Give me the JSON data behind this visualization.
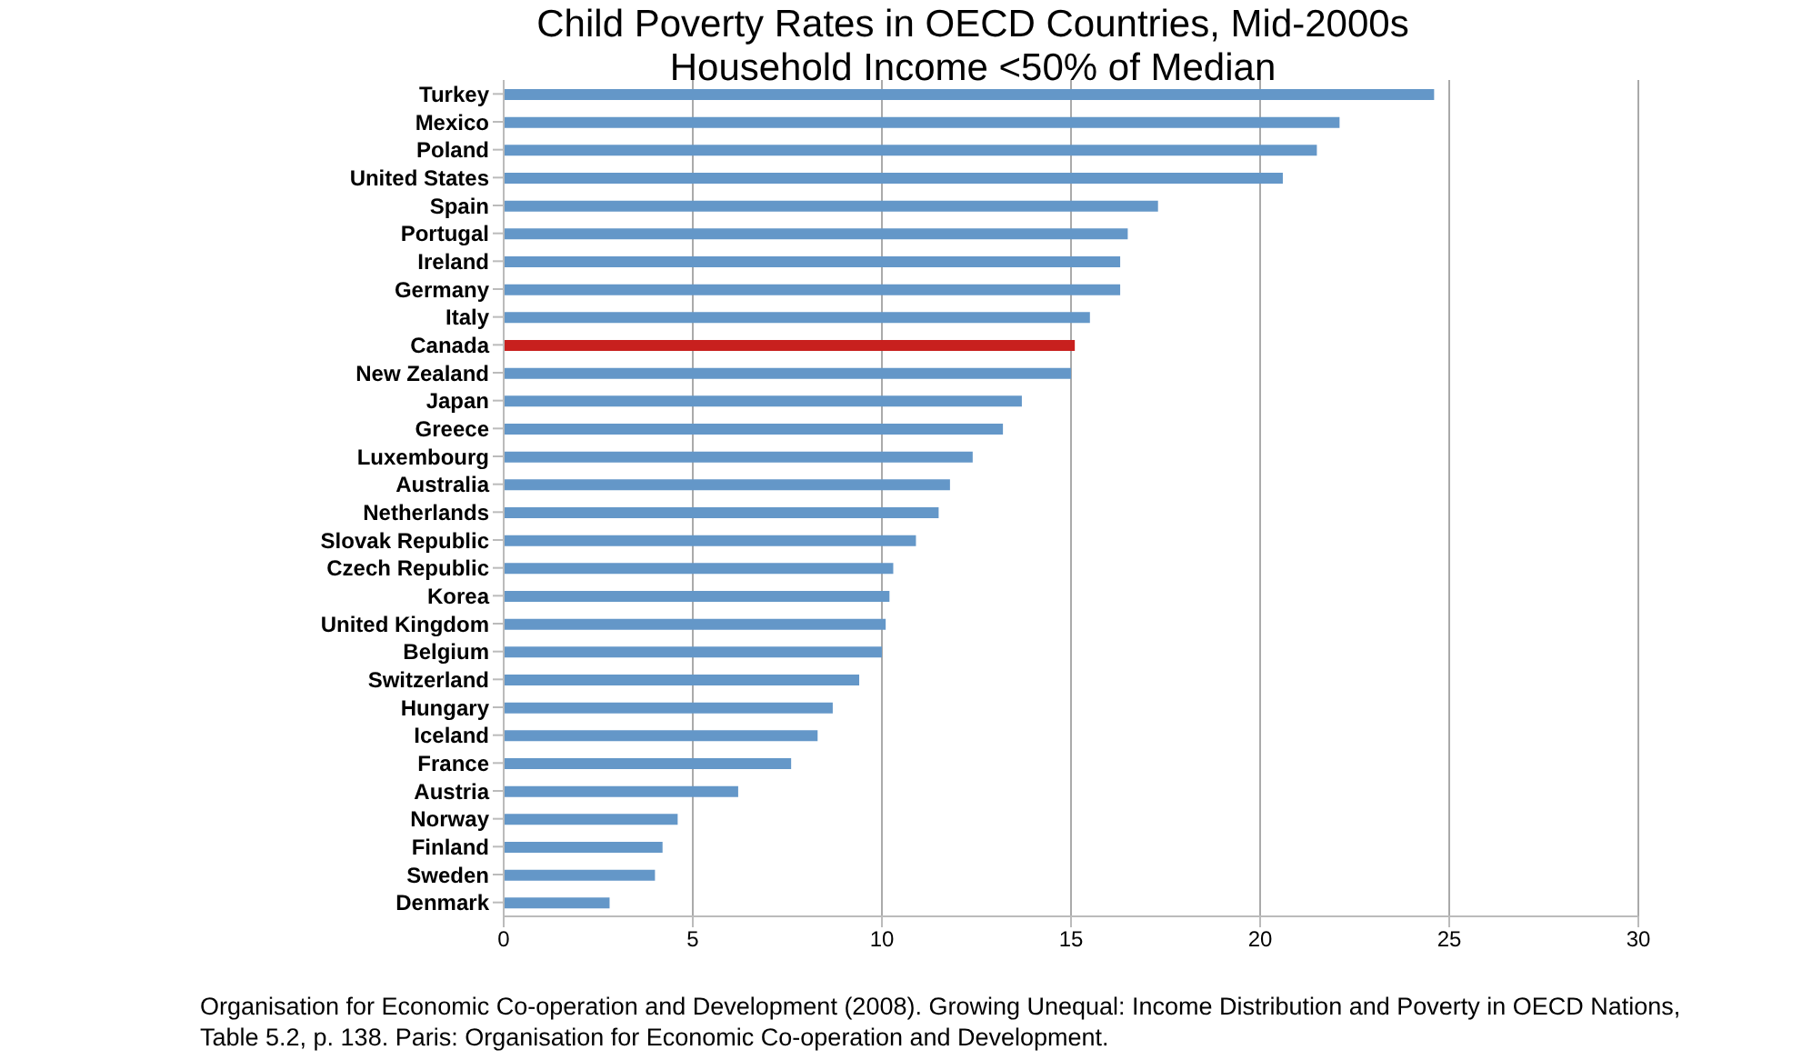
{
  "chart_data": {
    "type": "bar",
    "orientation": "horizontal",
    "title": "Child Poverty Rates in OECD Countries, Mid-2000s",
    "subtitle": "Household Income <50% of Median",
    "categories": [
      "Turkey",
      "Mexico",
      "Poland",
      "United States",
      "Spain",
      "Portugal",
      "Ireland",
      "Germany",
      "Italy",
      "Canada",
      "New Zealand",
      "Japan",
      "Greece",
      "Luxembourg",
      "Australia",
      "Netherlands",
      "Slovak Republic",
      "Czech Republic",
      "Korea",
      "United Kingdom",
      "Belgium",
      "Switzerland",
      "Hungary",
      "Iceland",
      "France",
      "Austria",
      "Norway",
      "Finland",
      "Sweden",
      "Denmark"
    ],
    "values": [
      24.6,
      22.1,
      21.5,
      20.6,
      17.3,
      16.5,
      16.3,
      16.3,
      15.5,
      15.1,
      15.0,
      13.7,
      13.2,
      12.4,
      11.8,
      11.5,
      10.9,
      10.3,
      10.2,
      10.1,
      10.0,
      9.4,
      8.7,
      8.3,
      7.6,
      6.2,
      4.6,
      4.2,
      4.0,
      2.8
    ],
    "colors": [
      "#6497c8",
      "#6497c8",
      "#6497c8",
      "#6497c8",
      "#6497c8",
      "#6497c8",
      "#6497c8",
      "#6497c8",
      "#6497c8",
      "#c8201e",
      "#6497c8",
      "#6497c8",
      "#6497c8",
      "#6497c8",
      "#6497c8",
      "#6497c8",
      "#6497c8",
      "#6497c8",
      "#6497c8",
      "#6497c8",
      "#6497c8",
      "#6497c8",
      "#6497c8",
      "#6497c8",
      "#6497c8",
      "#6497c8",
      "#6497c8",
      "#6497c8",
      "#6497c8",
      "#6497c8"
    ],
    "xlim": [
      0,
      30
    ],
    "xticks": [
      0,
      5,
      10,
      15,
      20,
      25,
      30
    ],
    "grid": "x",
    "annotations": [
      "Organisation for Economic Co-operation and Development (2008). Growing Unequal: Income Distribution and Poverty in OECD Nations, Table 5.2, p. 138. Paris: Organisation for Economic Co-operation and Development."
    ]
  }
}
